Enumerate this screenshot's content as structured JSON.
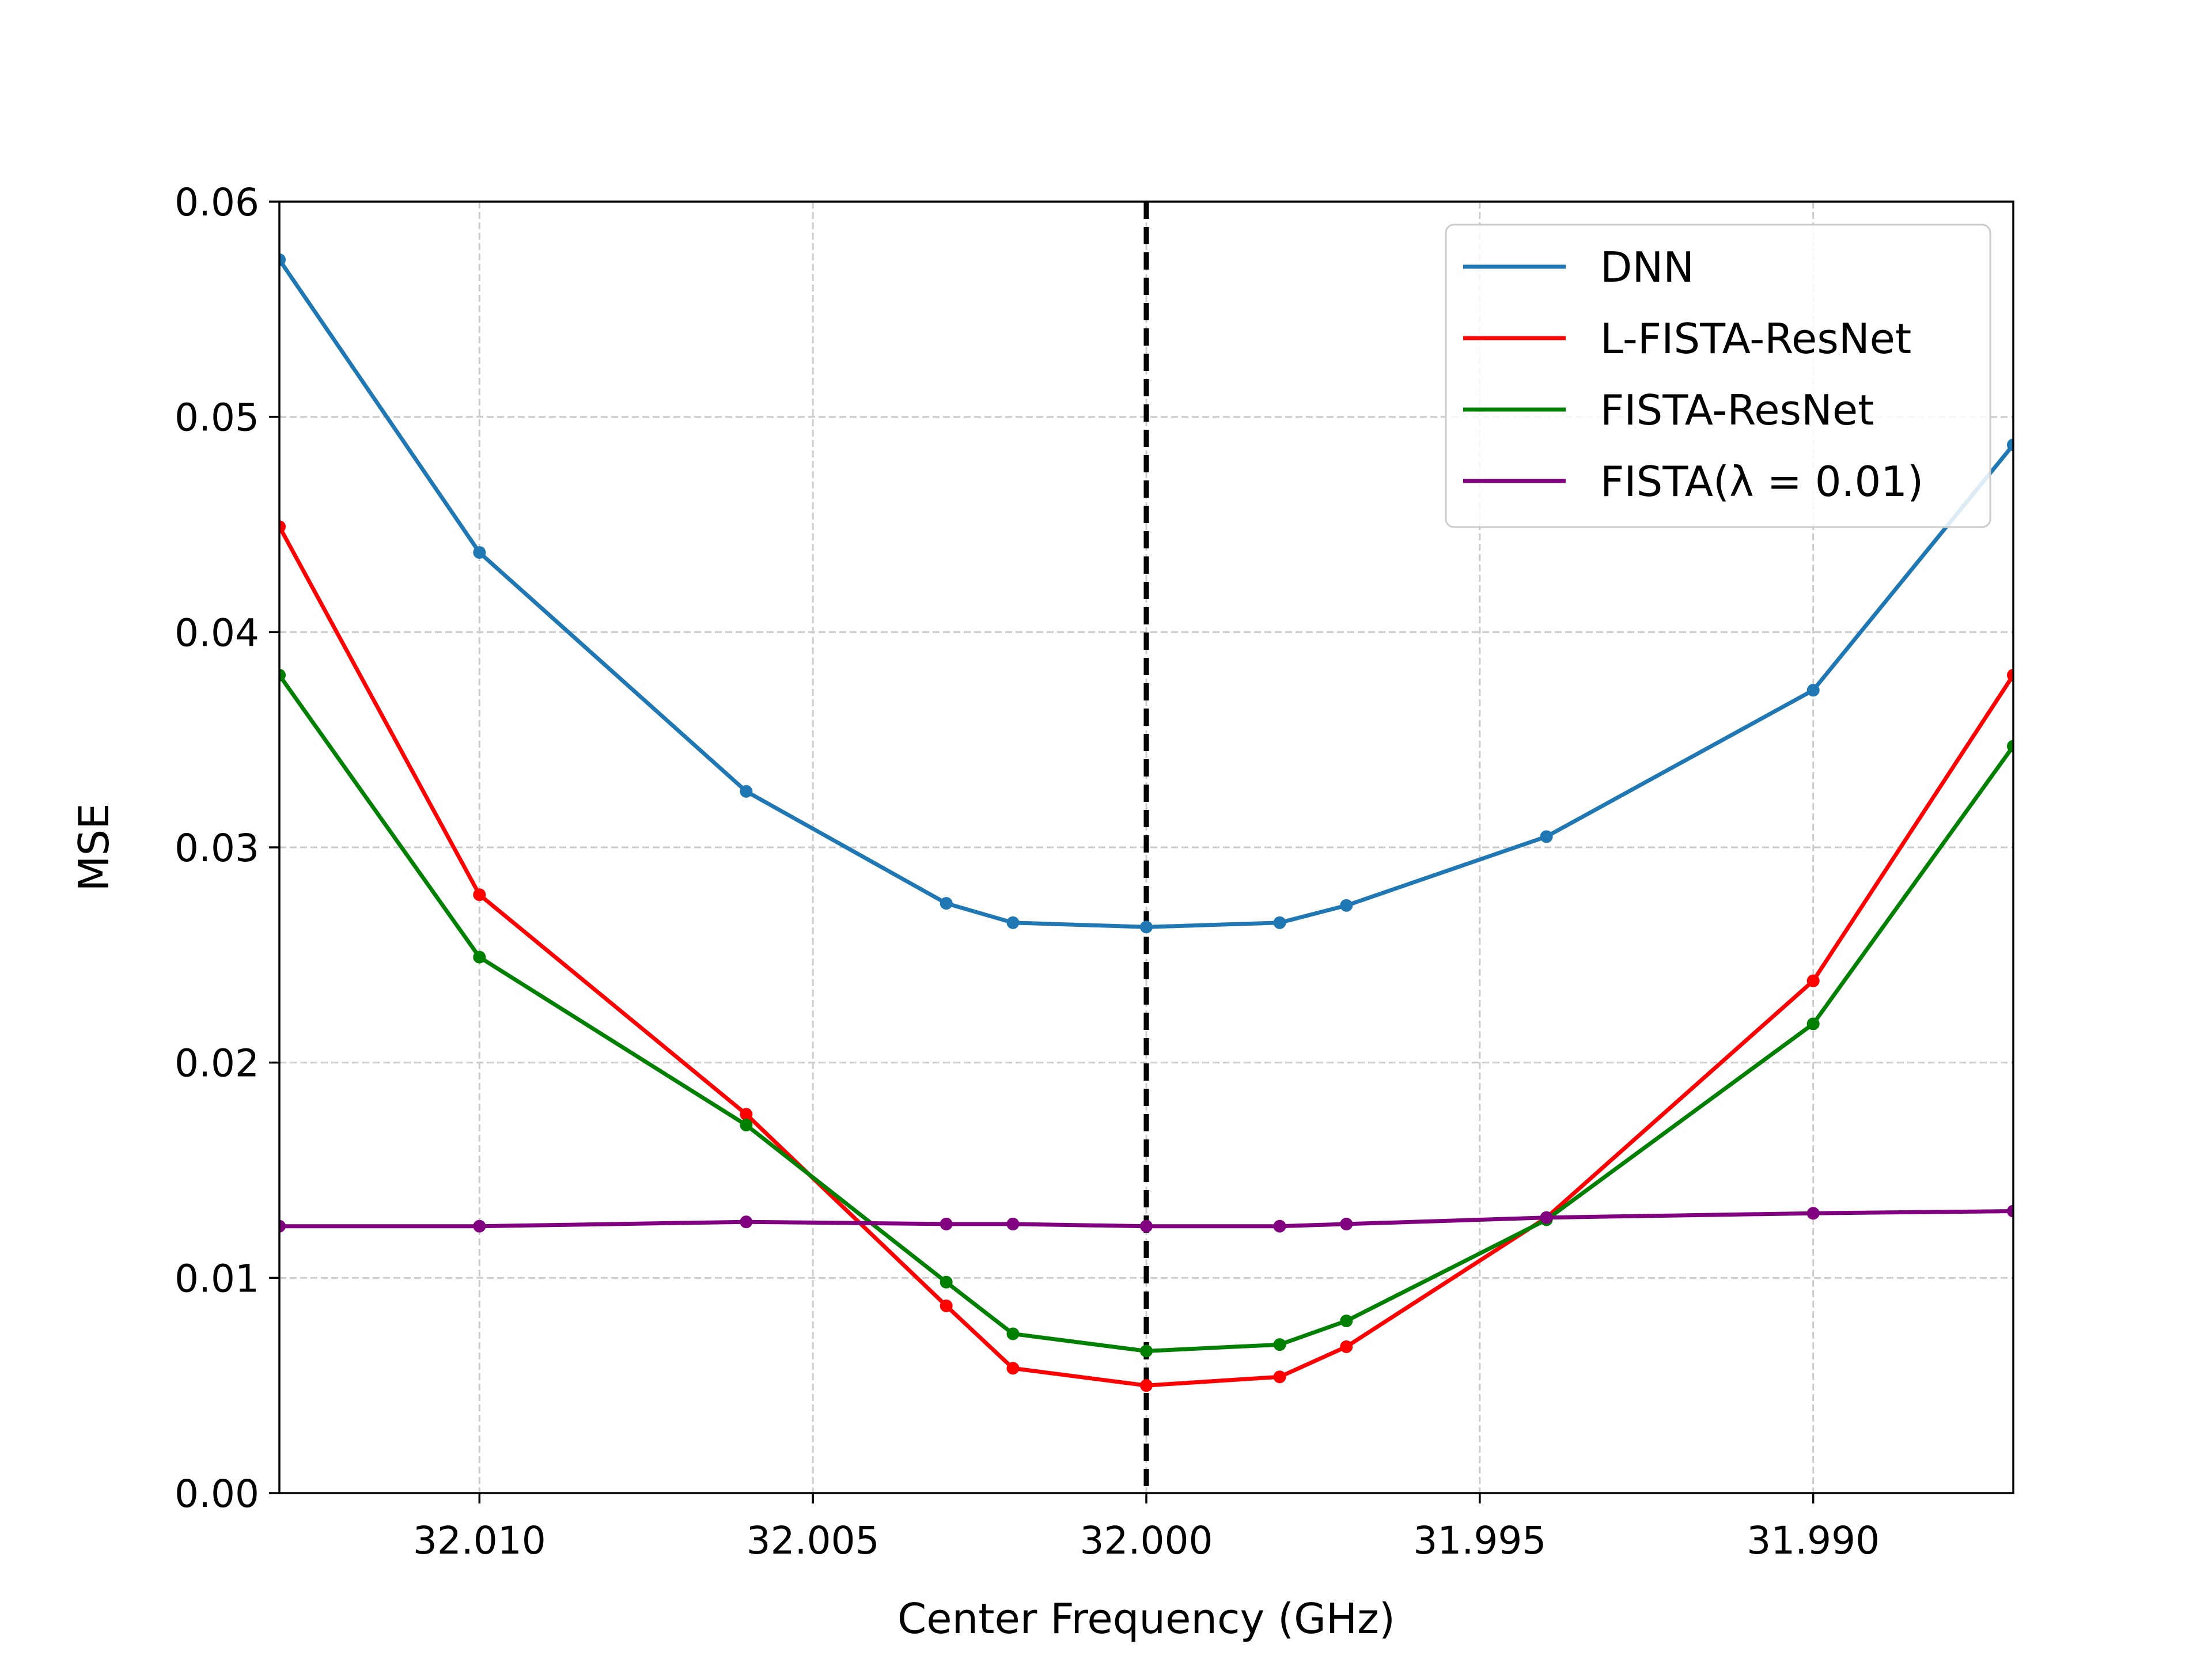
{
  "chart_data": {
    "type": "line",
    "title": "",
    "xlabel": "Center Frequency (GHz)",
    "ylabel": "MSE",
    "xlim": [
      32.013,
      31.987
    ],
    "ylim": [
      0,
      0.06
    ],
    "x_reversed": true,
    "xticks": [
      32.01,
      32.005,
      32.0,
      31.995,
      31.99
    ],
    "xtick_labels": [
      "32.010",
      "32.005",
      "32.000",
      "31.995",
      "31.990"
    ],
    "yticks": [
      0,
      0.01,
      0.02,
      0.03,
      0.04,
      0.05,
      0.06
    ],
    "ytick_labels": [
      "0.00",
      "0.01",
      "0.02",
      "0.03",
      "0.04",
      "0.05",
      "0.06"
    ],
    "grid": true,
    "legend_position": "upper right",
    "reference_line": {
      "x": 32.0,
      "style": "dashed",
      "color": "#000000"
    },
    "x": [
      32.013,
      32.01,
      32.006,
      32.003,
      32.002,
      32.0,
      31.998,
      31.997,
      31.994,
      31.99,
      31.987
    ],
    "series": [
      {
        "name": "DNN",
        "color": "#1f77b4",
        "values": [
          0.0573,
          0.0437,
          0.0326,
          0.0274,
          0.0265,
          0.0263,
          0.0265,
          0.0273,
          0.0305,
          0.0373,
          0.0487
        ]
      },
      {
        "name": "L-FISTA-ResNet",
        "color": "#ff0000",
        "values": [
          0.0449,
          0.0278,
          0.0176,
          0.0087,
          0.0058,
          0.005,
          0.0054,
          0.0068,
          0.0128,
          0.0238,
          0.038
        ]
      },
      {
        "name": "FISTA-ResNet",
        "color": "#008000",
        "values": [
          0.038,
          0.0249,
          0.0171,
          0.0098,
          0.0074,
          0.0066,
          0.0069,
          0.008,
          0.0127,
          0.0218,
          0.0347
        ]
      },
      {
        "name": "FISTA(λ = 0.01)",
        "color": "#800080",
        "values": [
          0.0124,
          0.0124,
          0.0126,
          0.0125,
          0.0125,
          0.0124,
          0.0124,
          0.0125,
          0.0128,
          0.013,
          0.0131
        ]
      }
    ]
  }
}
